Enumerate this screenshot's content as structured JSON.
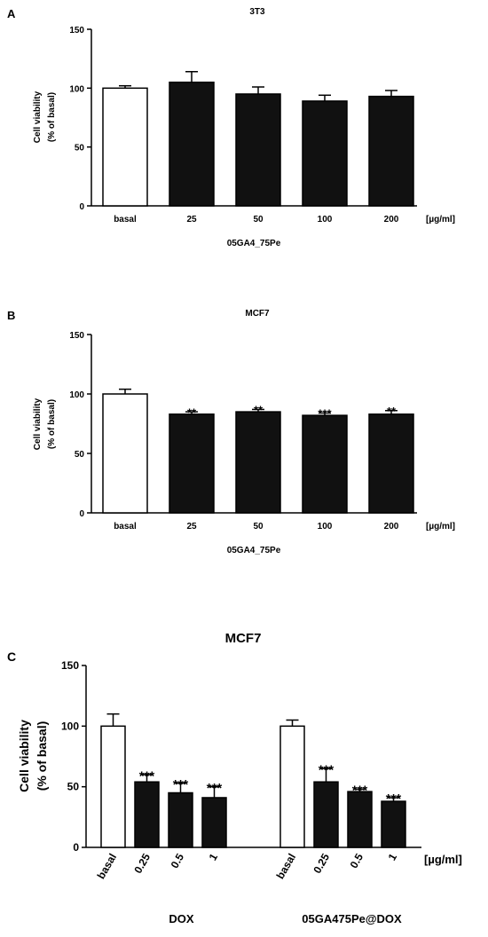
{
  "chart_data": [
    {
      "panel_letter": "A",
      "type": "bar",
      "title": "3T3",
      "ylabel_line1": "Cell viability",
      "ylabel_line2": "(% of basal)",
      "xlabel": "05GA4_75Pe",
      "unit_label": "[µg/ml]",
      "ylim": [
        0,
        150
      ],
      "yticks": [
        0,
        50,
        100,
        150
      ],
      "categories": [
        "basal",
        "25",
        "50",
        "100",
        "200"
      ],
      "values": [
        100,
        105,
        95,
        89,
        93
      ],
      "errors": [
        2,
        9,
        6,
        5,
        5
      ],
      "fills": [
        "#ffffff",
        "#111111",
        "#111111",
        "#111111",
        "#111111"
      ],
      "significance": [
        "",
        "",
        "",
        "",
        ""
      ]
    },
    {
      "panel_letter": "B",
      "type": "bar",
      "title": "MCF7",
      "ylabel_line1": "Cell viability",
      "ylabel_line2": "(% of basal)",
      "xlabel": "05GA4_75Pe",
      "unit_label": "[µg/ml]",
      "ylim": [
        0,
        150
      ],
      "yticks": [
        0,
        50,
        100,
        150
      ],
      "categories": [
        "basal",
        "25",
        "50",
        "100",
        "200"
      ],
      "values": [
        100,
        83,
        85,
        82,
        83
      ],
      "errors": [
        4,
        2,
        2,
        2,
        3
      ],
      "fills": [
        "#ffffff",
        "#111111",
        "#111111",
        "#111111",
        "#111111"
      ],
      "significance": [
        "",
        "**",
        "**",
        "***",
        "**"
      ]
    },
    {
      "panel_letter": "C",
      "type": "bar",
      "title": "MCF7",
      "ylabel_line1": "Cell viability",
      "ylabel_line2": "(% of basal)",
      "unit_label": "[µg/ml]",
      "ylim": [
        0,
        150
      ],
      "yticks": [
        0,
        50,
        100,
        150
      ],
      "groups": [
        {
          "name": "DOX",
          "categories": [
            "basal",
            "0.25",
            "0.5",
            "1"
          ],
          "values": [
            100,
            54,
            45,
            41
          ],
          "errors": [
            10,
            6,
            8,
            9
          ],
          "fills": [
            "#ffffff",
            "#111111",
            "#111111",
            "#111111"
          ],
          "significance": [
            "",
            "***",
            "***",
            "***"
          ]
        },
        {
          "name": "05GA475Pe@DOX",
          "categories": [
            "basal",
            "0.25",
            "0.5",
            "1"
          ],
          "values": [
            100,
            54,
            46,
            38
          ],
          "errors": [
            5,
            11,
            2,
            3
          ],
          "fills": [
            "#ffffff",
            "#111111",
            "#111111",
            "#111111"
          ],
          "significance": [
            "",
            "***",
            "***",
            "***"
          ]
        }
      ]
    }
  ]
}
